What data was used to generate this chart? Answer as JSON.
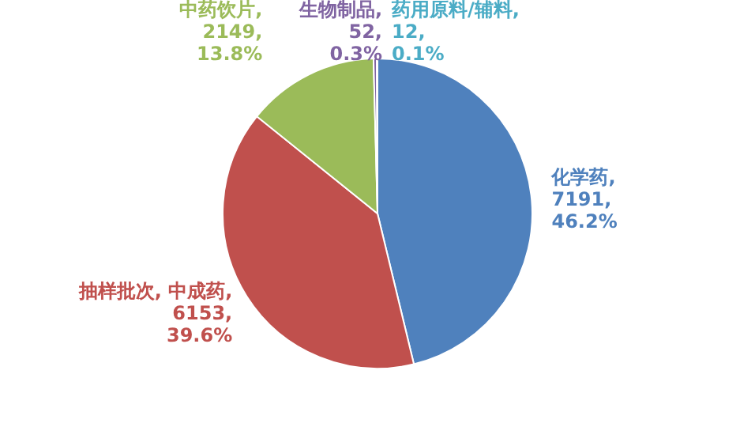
{
  "chart_data": {
    "type": "pie",
    "categories": [
      "化学药",
      "中成药",
      "中药饮片",
      "生物制品",
      "药用原料/辅料"
    ],
    "values": [
      7191,
      6153,
      2149,
      52,
      12
    ],
    "colors": [
      "#4f81bd",
      "#c0504d",
      "#9bbb59",
      "#8064a2",
      "#4bacc6"
    ],
    "value_labels": [
      ", 7191, 46.2%",
      ", 6153, 39.6%",
      ", 2149, 13.8%",
      ", 52, 0.3%",
      ", 12, 0.1%"
    ],
    "annotations": [
      {
        "text": "抽样批次, ",
        "x": "中成药"
      }
    ],
    "legend": false
  }
}
